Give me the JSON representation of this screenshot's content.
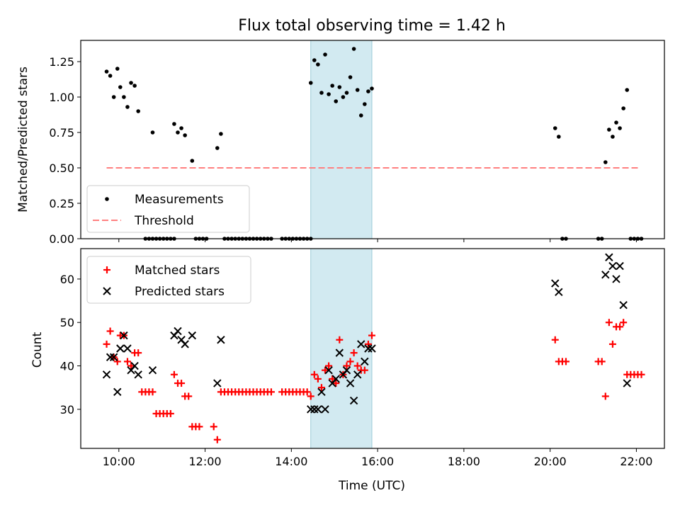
{
  "chart_data": [
    {
      "type": "scatter",
      "title": "Flux total observing time = 1.42 h",
      "xlabel": "",
      "ylabel": "Matched/Predicted stars",
      "xlim": [
        "09:07",
        "22:39"
      ],
      "ylim": [
        0,
        1.4
      ],
      "x_ticks": [
        "10:00",
        "12:00",
        "14:00",
        "16:00",
        "18:00",
        "20:00",
        "22:00"
      ],
      "y_ticks": [
        "0.00",
        "0.25",
        "0.50",
        "0.75",
        "1.00",
        "1.25"
      ],
      "shaded_span": [
        "14:27",
        "15:52"
      ],
      "legend": {
        "position": "lower-left",
        "entries": [
          "Measurements",
          "Threshold"
        ]
      },
      "threshold": {
        "name": "Threshold",
        "y": 0.5,
        "x_range": [
          "09:43",
          "22:02"
        ],
        "color": "#ff8080",
        "style": "dashed"
      },
      "series": [
        {
          "name": "Measurements",
          "color": "#000000",
          "marker": "dot",
          "points": [
            [
              "09:43",
              1.18
            ],
            [
              "09:48",
              1.15
            ],
            [
              "09:53",
              1.0
            ],
            [
              "09:58",
              1.2
            ],
            [
              "10:02",
              1.07
            ],
            [
              "10:07",
              1.0
            ],
            [
              "10:12",
              0.93
            ],
            [
              "10:17",
              1.1
            ],
            [
              "10:22",
              1.08
            ],
            [
              "10:27",
              0.9
            ],
            [
              "10:37",
              0.0
            ],
            [
              "10:42",
              0.0
            ],
            [
              "10:47",
              0.0
            ],
            [
              "10:52",
              0.0
            ],
            [
              "10:57",
              0.0
            ],
            [
              "11:02",
              0.0
            ],
            [
              "11:07",
              0.0
            ],
            [
              "11:12",
              0.0
            ],
            [
              "11:17",
              0.0
            ],
            [
              "10:47",
              0.75
            ],
            [
              "11:17",
              0.81
            ],
            [
              "11:22",
              0.75
            ],
            [
              "11:27",
              0.78
            ],
            [
              "11:32",
              0.73
            ],
            [
              "11:42",
              0.55
            ],
            [
              "11:47",
              0.0
            ],
            [
              "11:52",
              0.0
            ],
            [
              "11:57",
              0.0
            ],
            [
              "12:02",
              0.0
            ],
            [
              "12:17",
              0.64
            ],
            [
              "12:22",
              0.74
            ],
            [
              "12:27",
              0.0
            ],
            [
              "12:32",
              0.0
            ],
            [
              "12:37",
              0.0
            ],
            [
              "12:42",
              0.0
            ],
            [
              "12:47",
              0.0
            ],
            [
              "12:52",
              0.0
            ],
            [
              "12:57",
              0.0
            ],
            [
              "13:02",
              0.0
            ],
            [
              "13:07",
              0.0
            ],
            [
              "13:12",
              0.0
            ],
            [
              "13:17",
              0.0
            ],
            [
              "13:22",
              0.0
            ],
            [
              "13:27",
              0.0
            ],
            [
              "13:32",
              0.0
            ],
            [
              "13:47",
              0.0
            ],
            [
              "13:52",
              0.0
            ],
            [
              "13:57",
              0.0
            ],
            [
              "14:02",
              0.0
            ],
            [
              "14:07",
              0.0
            ],
            [
              "14:12",
              0.0
            ],
            [
              "14:17",
              0.0
            ],
            [
              "14:22",
              0.0
            ],
            [
              "14:27",
              0.0
            ],
            [
              "14:27",
              1.1
            ],
            [
              "14:32",
              1.26
            ],
            [
              "14:37",
              1.23
            ],
            [
              "14:42",
              1.03
            ],
            [
              "14:47",
              1.3
            ],
            [
              "14:52",
              1.02
            ],
            [
              "14:57",
              1.08
            ],
            [
              "15:02",
              0.97
            ],
            [
              "15:07",
              1.07
            ],
            [
              "15:12",
              1.0
            ],
            [
              "15:17",
              1.03
            ],
            [
              "15:22",
              1.14
            ],
            [
              "15:27",
              1.34
            ],
            [
              "15:32",
              1.05
            ],
            [
              "15:37",
              0.87
            ],
            [
              "15:42",
              0.95
            ],
            [
              "15:47",
              1.04
            ],
            [
              "15:52",
              1.06
            ],
            [
              "20:07",
              0.78
            ],
            [
              "20:12",
              0.72
            ],
            [
              "20:17",
              0.0
            ],
            [
              "20:22",
              0.0
            ],
            [
              "21:07",
              0.0
            ],
            [
              "21:12",
              0.0
            ],
            [
              "21:17",
              0.54
            ],
            [
              "21:22",
              0.77
            ],
            [
              "21:27",
              0.72
            ],
            [
              "21:32",
              0.82
            ],
            [
              "21:37",
              0.78
            ],
            [
              "21:42",
              0.92
            ],
            [
              "21:47",
              1.05
            ],
            [
              "21:52",
              0.0
            ],
            [
              "21:57",
              0.0
            ],
            [
              "22:02",
              0.0
            ],
            [
              "22:07",
              0.0
            ]
          ]
        }
      ]
    },
    {
      "type": "scatter",
      "title": "",
      "xlabel": "Time (UTC)",
      "ylabel": "Count",
      "xlim": [
        "09:07",
        "22:39"
      ],
      "ylim": [
        21,
        67
      ],
      "x_ticks": [
        "10:00",
        "12:00",
        "14:00",
        "16:00",
        "18:00",
        "20:00",
        "22:00"
      ],
      "y_ticks": [
        "30",
        "40",
        "50",
        "60"
      ],
      "shaded_span": [
        "14:27",
        "15:52"
      ],
      "legend": {
        "position": "upper-left",
        "entries": [
          "Matched stars",
          "Predicted stars"
        ]
      },
      "series": [
        {
          "name": "Matched stars",
          "color": "#ff0000",
          "marker": "plus",
          "points": [
            [
              "09:43",
              45
            ],
            [
              "09:48",
              48
            ],
            [
              "09:53",
              42
            ],
            [
              "09:58",
              41
            ],
            [
              "10:02",
              47
            ],
            [
              "10:07",
              47
            ],
            [
              "10:12",
              41
            ],
            [
              "10:17",
              40
            ],
            [
              "10:22",
              43
            ],
            [
              "10:27",
              43
            ],
            [
              "10:32",
              34
            ],
            [
              "10:37",
              34
            ],
            [
              "10:42",
              34
            ],
            [
              "10:47",
              34
            ],
            [
              "10:52",
              29
            ],
            [
              "10:57",
              29
            ],
            [
              "11:02",
              29
            ],
            [
              "11:07",
              29
            ],
            [
              "11:12",
              29
            ],
            [
              "11:17",
              38
            ],
            [
              "11:22",
              36
            ],
            [
              "11:27",
              36
            ],
            [
              "11:32",
              33
            ],
            [
              "11:37",
              33
            ],
            [
              "11:42",
              26
            ],
            [
              "11:47",
              26
            ],
            [
              "11:52",
              26
            ],
            [
              "12:12",
              26
            ],
            [
              "12:17",
              23
            ],
            [
              "12:22",
              34
            ],
            [
              "12:27",
              34
            ],
            [
              "12:32",
              34
            ],
            [
              "12:37",
              34
            ],
            [
              "12:42",
              34
            ],
            [
              "12:47",
              34
            ],
            [
              "12:52",
              34
            ],
            [
              "12:57",
              34
            ],
            [
              "13:02",
              34
            ],
            [
              "13:07",
              34
            ],
            [
              "13:12",
              34
            ],
            [
              "13:17",
              34
            ],
            [
              "13:22",
              34
            ],
            [
              "13:27",
              34
            ],
            [
              "13:32",
              34
            ],
            [
              "13:47",
              34
            ],
            [
              "13:52",
              34
            ],
            [
              "13:57",
              34
            ],
            [
              "14:02",
              34
            ],
            [
              "14:07",
              34
            ],
            [
              "14:12",
              34
            ],
            [
              "14:17",
              34
            ],
            [
              "14:22",
              34
            ],
            [
              "14:27",
              33
            ],
            [
              "14:32",
              38
            ],
            [
              "14:37",
              37
            ],
            [
              "14:42",
              35
            ],
            [
              "14:47",
              39
            ],
            [
              "14:52",
              40
            ],
            [
              "14:57",
              37
            ],
            [
              "15:02",
              36
            ],
            [
              "15:07",
              46
            ],
            [
              "15:12",
              38
            ],
            [
              "15:17",
              40
            ],
            [
              "15:22",
              41
            ],
            [
              "15:27",
              43
            ],
            [
              "15:32",
              40
            ],
            [
              "15:37",
              39
            ],
            [
              "15:42",
              39
            ],
            [
              "15:47",
              45
            ],
            [
              "15:52",
              47
            ],
            [
              "20:07",
              46
            ],
            [
              "20:12",
              41
            ],
            [
              "20:17",
              41
            ],
            [
              "20:22",
              41
            ],
            [
              "21:07",
              41
            ],
            [
              "21:12",
              41
            ],
            [
              "21:17",
              33
            ],
            [
              "21:22",
              50
            ],
            [
              "21:27",
              45
            ],
            [
              "21:32",
              49
            ],
            [
              "21:37",
              49
            ],
            [
              "21:42",
              50
            ],
            [
              "21:47",
              38
            ],
            [
              "21:52",
              38
            ],
            [
              "21:57",
              38
            ],
            [
              "22:02",
              38
            ],
            [
              "22:07",
              38
            ]
          ]
        },
        {
          "name": "Predicted stars",
          "color": "#000000",
          "marker": "x",
          "points": [
            [
              "09:43",
              38
            ],
            [
              "09:48",
              42
            ],
            [
              "09:53",
              42
            ],
            [
              "09:58",
              34
            ],
            [
              "10:02",
              44
            ],
            [
              "10:07",
              47
            ],
            [
              "10:12",
              44
            ],
            [
              "10:17",
              39
            ],
            [
              "10:22",
              40
            ],
            [
              "10:27",
              38
            ],
            [
              "10:47",
              39
            ],
            [
              "11:17",
              47
            ],
            [
              "11:22",
              48
            ],
            [
              "11:27",
              46
            ],
            [
              "11:32",
              45
            ],
            [
              "11:42",
              47
            ],
            [
              "12:17",
              36
            ],
            [
              "12:22",
              46
            ],
            [
              "14:27",
              30
            ],
            [
              "14:32",
              30
            ],
            [
              "14:37",
              30
            ],
            [
              "14:42",
              34
            ],
            [
              "14:47",
              30
            ],
            [
              "14:52",
              39
            ],
            [
              "14:57",
              36
            ],
            [
              "15:02",
              37
            ],
            [
              "15:07",
              43
            ],
            [
              "15:12",
              38
            ],
            [
              "15:17",
              39
            ],
            [
              "15:22",
              36
            ],
            [
              "15:27",
              32
            ],
            [
              "15:32",
              38
            ],
            [
              "15:37",
              45
            ],
            [
              "15:42",
              41
            ],
            [
              "15:47",
              44
            ],
            [
              "15:52",
              44
            ],
            [
              "20:07",
              59
            ],
            [
              "20:12",
              57
            ],
            [
              "21:17",
              61
            ],
            [
              "21:22",
              65
            ],
            [
              "21:27",
              63
            ],
            [
              "21:32",
              60
            ],
            [
              "21:37",
              63
            ],
            [
              "21:42",
              54
            ],
            [
              "21:47",
              36
            ]
          ]
        }
      ]
    }
  ]
}
